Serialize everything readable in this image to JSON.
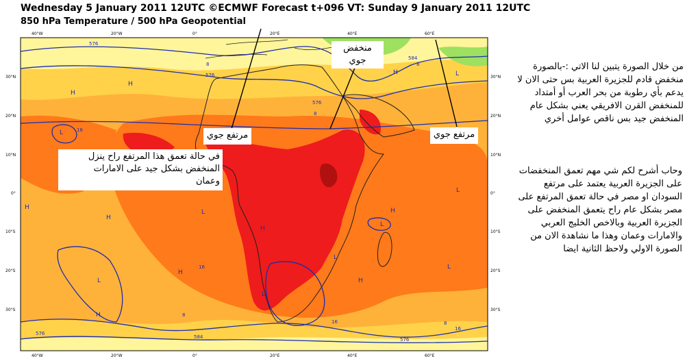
{
  "header": {
    "line1": "Wednesday 5 January 2011 12UTC ©ECMWF Forecast t+096 VT: Sunday 9 January 2011 12UTC",
    "line2": "850 hPa Temperature / 500 hPa Geopotential"
  },
  "axes": {
    "top_ticks": [
      "40°W",
      "20°W",
      "0°",
      "20°E",
      "40°E",
      "60°E"
    ],
    "bottom_ticks": [
      "40°W",
      "20°W",
      "0°",
      "20°E",
      "40°E",
      "60°E"
    ],
    "left_ticks": [
      "30°N",
      "20°N",
      "10°N",
      "0°",
      "10°S",
      "20°S",
      "30°S"
    ],
    "right_ticks": [
      "30°N",
      "20°N",
      "10°N",
      "0°",
      "10°S",
      "20°S",
      "30°S"
    ]
  },
  "contour_labels": [
    "576",
    "584",
    "8",
    "16",
    "576",
    "8",
    "576",
    "16",
    "8",
    "16",
    "8",
    "16",
    "584",
    "576",
    "576",
    "8"
  ],
  "pressure_marks": [
    "H",
    "H",
    "L",
    "H",
    "H",
    "L",
    "H",
    "L",
    "L",
    "H",
    "L",
    "L",
    "L",
    "H",
    "H",
    "L",
    "H",
    "L",
    "H"
  ],
  "annotations": {
    "low_label": "منخفض جوي",
    "high_label_center": "مرتفع جوي",
    "high_label_right": "مرتفع جوي",
    "box_text": [
      "في حالة تعمق هذا المرتفع راح ينزل",
      "المنخفض بشكل جيد على الامارات",
      "وعمان"
    ],
    "right_text_1": [
      "من خلال الصورة يتبين لنا الاتي :-بالصورة",
      "منخفض قادم للجزيرة العربية بس حتى الان لا",
      "يدعم بأي رطوبة من بحر العرب أو أمتداد",
      "للمنخفض القرن الافريقي يعني بشكل عام",
      "المنخفض جيد بس ناقص عوامل أخري"
    ],
    "right_text_2": [
      "وحاب أشرح لكم شي مهم تعمق المنخفضات",
      "على الجزيرة العربية يعتمد على مرتفع",
      "السودان او مصر في حالة تعمق المرتفع على",
      "مصر بشكل عام راح يتعمق المنخفض على",
      "الجزيرة العربية وبالاخص الخليج العربي",
      "والامارات وعمان وهذا ما نشاهدة الان من",
      "الصورة الاولي ولاحظ الثانية ايضا"
    ]
  },
  "colors": {
    "light_yellow": "#fff59a",
    "yellow": "#ffd24a",
    "orange_light": "#ffb23a",
    "orange": "#ff7a1a",
    "red": "#ee1c1c",
    "dark_red": "#b01010",
    "green": "#9ee060",
    "contour_blue": "#1c2cb0",
    "coast": "#202020"
  }
}
